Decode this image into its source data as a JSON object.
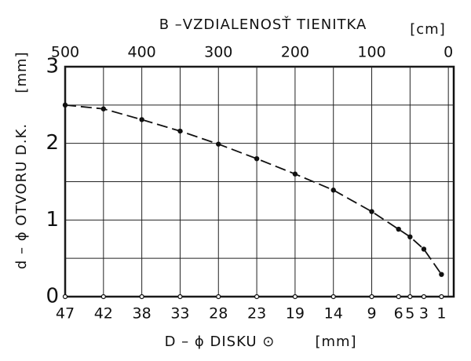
{
  "chart_data": {
    "type": "line",
    "top_axis_title": "B –VZDIALENOSŤ TIENITKA",
    "top_axis_unit": "[cm]",
    "y_axis_title": "d – ϕ OTVORU D.K.",
    "y_axis_unit": "[mm]",
    "bottom_axis_title": "D – ϕ DISKU ⊙",
    "bottom_axis_unit": "[mm]",
    "x": [
      500,
      450,
      400,
      350,
      300,
      250,
      200,
      150,
      100,
      65,
      50,
      32,
      9
    ],
    "bottom_labels": [
      47,
      42,
      38,
      33,
      28,
      23,
      19,
      14,
      9,
      6,
      5,
      3,
      1
    ],
    "series": [
      {
        "color": "#111111",
        "values": [
          2.5,
          2.45,
          2.31,
          2.16,
          1.99,
          1.8,
          1.6,
          1.39,
          1.11,
          0.88,
          0.78,
          0.62,
          0.29
        ]
      }
    ],
    "xlim": [
      500,
      -7
    ],
    "ylim": [
      0,
      3
    ],
    "xticks": [
      500,
      400,
      300,
      200,
      100,
      0
    ],
    "xminor_ticks": [
      450,
      350,
      250,
      150,
      50
    ],
    "yticks": [
      0,
      1,
      2,
      3
    ],
    "yminor_ticks": [
      0.5,
      1.5,
      2.5
    ],
    "grid": true
  }
}
